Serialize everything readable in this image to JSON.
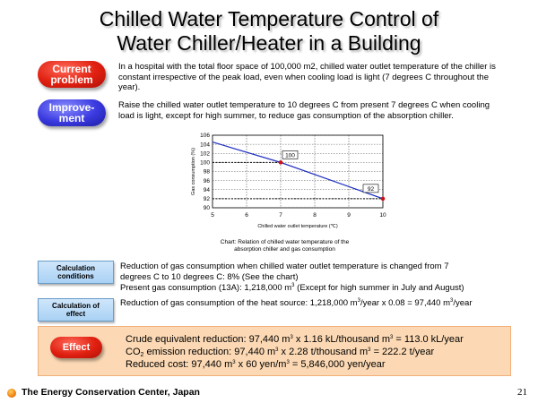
{
  "title": {
    "line1": "Chilled Water Temperature Control of",
    "line2": "Water Chiller/Heater in a Building"
  },
  "current": {
    "label_line1": "Current",
    "label_line2": "problem",
    "text": "In a hospital with the total floor space of 100,000 m2, chilled water outlet temperature of the chiller is constant irrespective of the peak load, even when cooling load is light (7 degrees C throughout the year)."
  },
  "improvement": {
    "label_line1": "Improve-",
    "label_line2": "ment",
    "text": "Raise the chilled water outlet temperature to 10 degrees C from present 7 degrees C when cooling load is light, except for high summer, to reduce gas consumption of the absorption chiller."
  },
  "chart_data": {
    "type": "line",
    "xlabel": "Chilled water outlet temperature (℃)",
    "ylabel": "Gas consumption (%)",
    "xlim": [
      5,
      10
    ],
    "ylim": [
      90,
      106
    ],
    "x_ticks": [
      "5",
      "6",
      "7",
      "8",
      "9",
      "10"
    ],
    "y_ticks": [
      "90",
      "92",
      "94",
      "96",
      "98",
      "100",
      "102",
      "104",
      "106"
    ],
    "series": [
      {
        "name": "Gas consumption",
        "x": [
          5,
          7,
          10
        ],
        "y": [
          104.5,
          100,
          92
        ]
      }
    ],
    "markers": [
      {
        "x": 7,
        "y": 100,
        "label": "100"
      },
      {
        "x": 10,
        "y": 92,
        "label": "92"
      }
    ],
    "caption_line1": "Chart: Relation of chilled water temperature of the",
    "caption_line2": "absorption chiller and gas consumption"
  },
  "calc_conditions": {
    "label_line1": "Calculation",
    "label_line2": "conditions",
    "line1": "Reduction of gas consumption when chilled water outlet temperature is changed from 7",
    "line2": "degrees C to 10 degrees C: 8% (See the chart)",
    "line3": "Present gas consumption (13A): 1,218,000 m",
    "line3_sup": "3",
    "line3_end": " (Except for high summer in July and August)"
  },
  "calc_effect": {
    "label_line1": "Calculation of",
    "label_line2": "effect",
    "text_a": "Reduction of gas consumption of the heat source: 1,218,000 m",
    "sup1": "3",
    "text_b": "/year x 0.08 = 97,440 m",
    "sup2": "3",
    "text_c": "/year"
  },
  "effect": {
    "label": "Effect",
    "line1_a": "Crude equivalent reduction: 97,440 m",
    "line1_sup1": "3",
    "line1_b": " x 1.16 kL/thousand m",
    "line1_sup2": "3",
    "line1_c": " = 113.0 kL/year",
    "line2_a": "CO",
    "line2_sub": "2",
    "line2_b": " emission reduction: 97,440 m",
    "line2_sup1": "3",
    "line2_c": " x 2.28 t/thousand m",
    "line2_sup2": "3",
    "line2_d": " = 222.2 t/year",
    "line3_a": "Reduced cost: 97,440 m",
    "line3_sup": "3",
    "line3_b": " x 60 yen/m",
    "line3_sup2": "3",
    "line3_c": " = 5,846,000 yen/year"
  },
  "footer": {
    "org": "The Energy Conservation Center, Japan",
    "page": "21"
  },
  "colors": {
    "line": "#2030c0",
    "marker": "#d01010",
    "dashed": "#000000"
  }
}
